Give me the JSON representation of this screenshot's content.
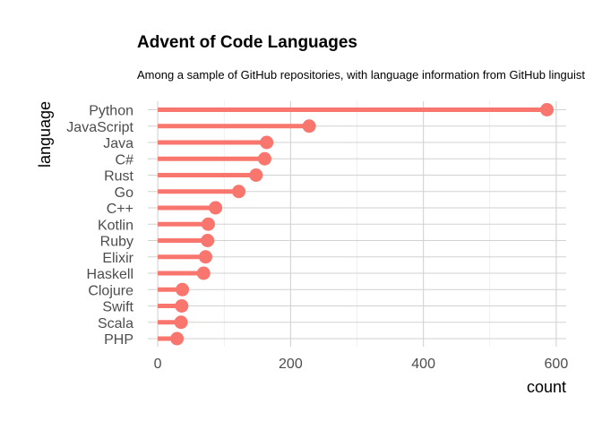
{
  "chart_data": {
    "type": "lollipop",
    "title": "Advent of Code Languages",
    "subtitle": "Among a sample of GitHub repositories, with language information from GitHub linguist",
    "xlabel": "count",
    "ylabel": "language",
    "xlim": [
      -15,
      615
    ],
    "xticks": [
      0,
      200,
      400,
      600
    ],
    "grid": true,
    "color": "#F8766D",
    "categories": [
      "Python",
      "JavaScript",
      "Java",
      "C#",
      "Rust",
      "Go",
      "C++",
      "Kotlin",
      "Ruby",
      "Elixir",
      "Haskell",
      "Clojure",
      "Swift",
      "Scala",
      "PHP"
    ],
    "values": [
      586,
      228,
      164,
      161,
      148,
      122,
      87,
      76,
      75,
      72,
      69,
      37,
      36,
      35,
      29
    ]
  }
}
